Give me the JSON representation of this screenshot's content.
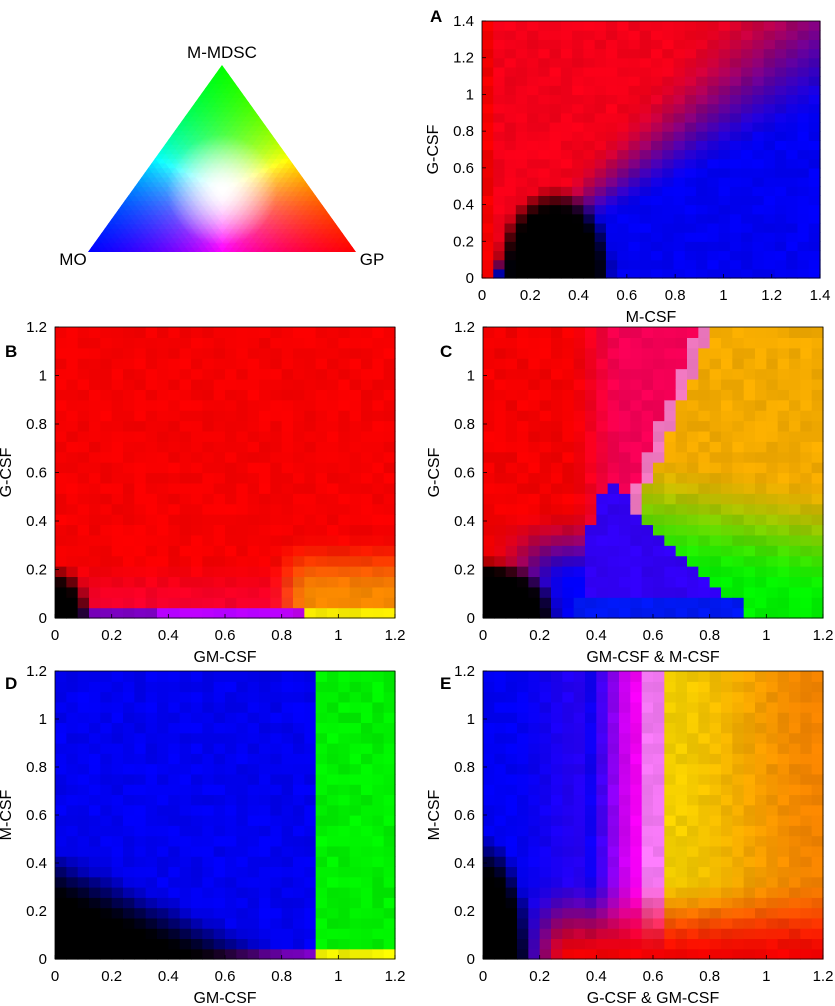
{
  "legend": {
    "vertices": {
      "top": "M-MDSC",
      "left": "MO",
      "right": "GP"
    },
    "vertex_colors": {
      "top": "#00ff00",
      "left": "#0000ff",
      "right": "#ff0000"
    },
    "center_color": "#ffffff"
  },
  "chart_data": [
    {
      "panel": "A",
      "type": "heatmap",
      "xlabel": "M-CSF",
      "ylabel": "G-CSF",
      "xlim": [
        0,
        1.4
      ],
      "ylim": [
        0,
        1.4
      ],
      "xticks": [
        "0",
        "0.2",
        "0.4",
        "0.6",
        "0.8",
        "1",
        "1.2",
        "1.4"
      ],
      "yticks": [
        "0",
        "0.2",
        "0.4",
        "0.6",
        "0.8",
        "1",
        "1.2",
        "1.4"
      ],
      "regions": [
        {
          "outcome": "MO",
          "color": "#0000ff",
          "where": "M-CSF > ~0.5 and G-CSF below ~0.7 diagonal"
        },
        {
          "outcome": "GP",
          "color": "#ff0000",
          "where": "M-CSF < ~0.3 and G-CSF > ~0.4"
        },
        {
          "outcome": "mixed GP/MO",
          "color": "#ff00ff",
          "where": "along diagonal G-CSF ≈ M-CSF"
        },
        {
          "outcome": "no differentiation",
          "color": "#000000",
          "where": "M-CSF < ~0.5 and G-CSF < ~0.5 (dome)"
        }
      ]
    },
    {
      "panel": "B",
      "type": "heatmap",
      "xlabel": "GM-CSF",
      "ylabel": "G-CSF",
      "xlim": [
        0,
        1.2
      ],
      "ylim": [
        0,
        1.2
      ],
      "xticks": [
        "0",
        "0.2",
        "0.4",
        "0.6",
        "0.8",
        "1",
        "1.2"
      ],
      "yticks": [
        "0",
        "0.2",
        "0.4",
        "0.6",
        "0.8",
        "1",
        "1.2"
      ],
      "regions": [
        {
          "outcome": "GP",
          "color": "#ff0000",
          "where": "almost everywhere"
        },
        {
          "outcome": "GP/M-MDSC",
          "color": "#ff8800",
          "where": "GM-CSF > ~0.8, G-CSF < ~0.3"
        },
        {
          "outcome": "M-MDSC/GP",
          "color": "#ffff00",
          "where": "GM-CSF > ~0.9, G-CSF ≈ 0"
        },
        {
          "outcome": "mixed",
          "color": "#aa00ff",
          "where": "G-CSF ≈ 0, GM-CSF 0.3–0.9"
        },
        {
          "outcome": "no differentiation",
          "color": "#000000",
          "where": "bottom-left corner"
        }
      ]
    },
    {
      "panel": "C",
      "type": "heatmap",
      "xlabel": "GM-CSF & M-CSF",
      "ylabel": "G-CSF",
      "xlim": [
        0,
        1.2
      ],
      "ylim": [
        0,
        1.2
      ],
      "xticks": [
        "0",
        "0.2",
        "0.4",
        "0.6",
        "0.8",
        "1",
        "1.2"
      ],
      "yticks": [
        "0",
        "0.2",
        "0.4",
        "0.6",
        "0.8",
        "1",
        "1.2"
      ],
      "regions": [
        {
          "outcome": "GP",
          "color": "#ff0000",
          "where": "x < ~0.5, upper-left"
        },
        {
          "outcome": "GP/M-MDSC",
          "color": "#ffaa00",
          "where": "x > ~0.6, upper-right"
        },
        {
          "outcome": "M-MDSC",
          "color": "#00ff00",
          "where": "x > ~0.7, lower-right"
        },
        {
          "outcome": "MO",
          "color": "#0000ff",
          "where": "lower middle"
        },
        {
          "outcome": "no differentiation",
          "color": "#000000",
          "where": "x < ~0.25, G-CSF < ~0.25"
        }
      ]
    },
    {
      "panel": "D",
      "type": "heatmap",
      "xlabel": "GM-CSF",
      "ylabel": "M-CSF",
      "xlim": [
        0,
        1.2
      ],
      "ylim": [
        0,
        1.2
      ],
      "xticks": [
        "0",
        "0.2",
        "0.4",
        "0.6",
        "0.8",
        "1",
        "1.2"
      ],
      "yticks": [
        "0",
        "0.2",
        "0.4",
        "0.6",
        "0.8",
        "1",
        "1.2"
      ],
      "regions": [
        {
          "outcome": "MO",
          "color": "#0000ff",
          "where": "GM-CSF < ~0.9"
        },
        {
          "outcome": "M-MDSC",
          "color": "#00ff00",
          "where": "GM-CSF > ~0.9"
        },
        {
          "outcome": "mixed",
          "color": "#ffff00",
          "where": "GM-CSF > ~0.9, M-CSF ≈ 0"
        },
        {
          "outcome": "no differentiation",
          "color": "#000000",
          "where": "lower-left wedge"
        }
      ]
    },
    {
      "panel": "E",
      "type": "heatmap",
      "xlabel": "G-CSF & GM-CSF",
      "ylabel": "M-CSF",
      "xlim": [
        0,
        1.2
      ],
      "ylim": [
        0,
        1.2
      ],
      "xticks": [
        "0",
        "0.2",
        "0.4",
        "0.6",
        "0.8",
        "1",
        "1.2"
      ],
      "yticks": [
        "0",
        "0.2",
        "0.4",
        "0.6",
        "0.8",
        "1",
        "1.2"
      ],
      "regions": [
        {
          "outcome": "MO",
          "color": "#0000ff",
          "where": "x < ~0.35"
        },
        {
          "outcome": "GP/MO",
          "color": "#ff00ff",
          "where": "x 0.35–0.6"
        },
        {
          "outcome": "GP/M-MDSC",
          "color": "#ffaa00",
          "where": "x > ~0.65"
        },
        {
          "outcome": "GP",
          "color": "#ff0000",
          "where": "M-CSF ≈ 0, x > 0.15"
        },
        {
          "outcome": "no differentiation",
          "color": "#000000",
          "where": "x < ~0.15, M-CSF < ~0.5"
        }
      ]
    }
  ]
}
